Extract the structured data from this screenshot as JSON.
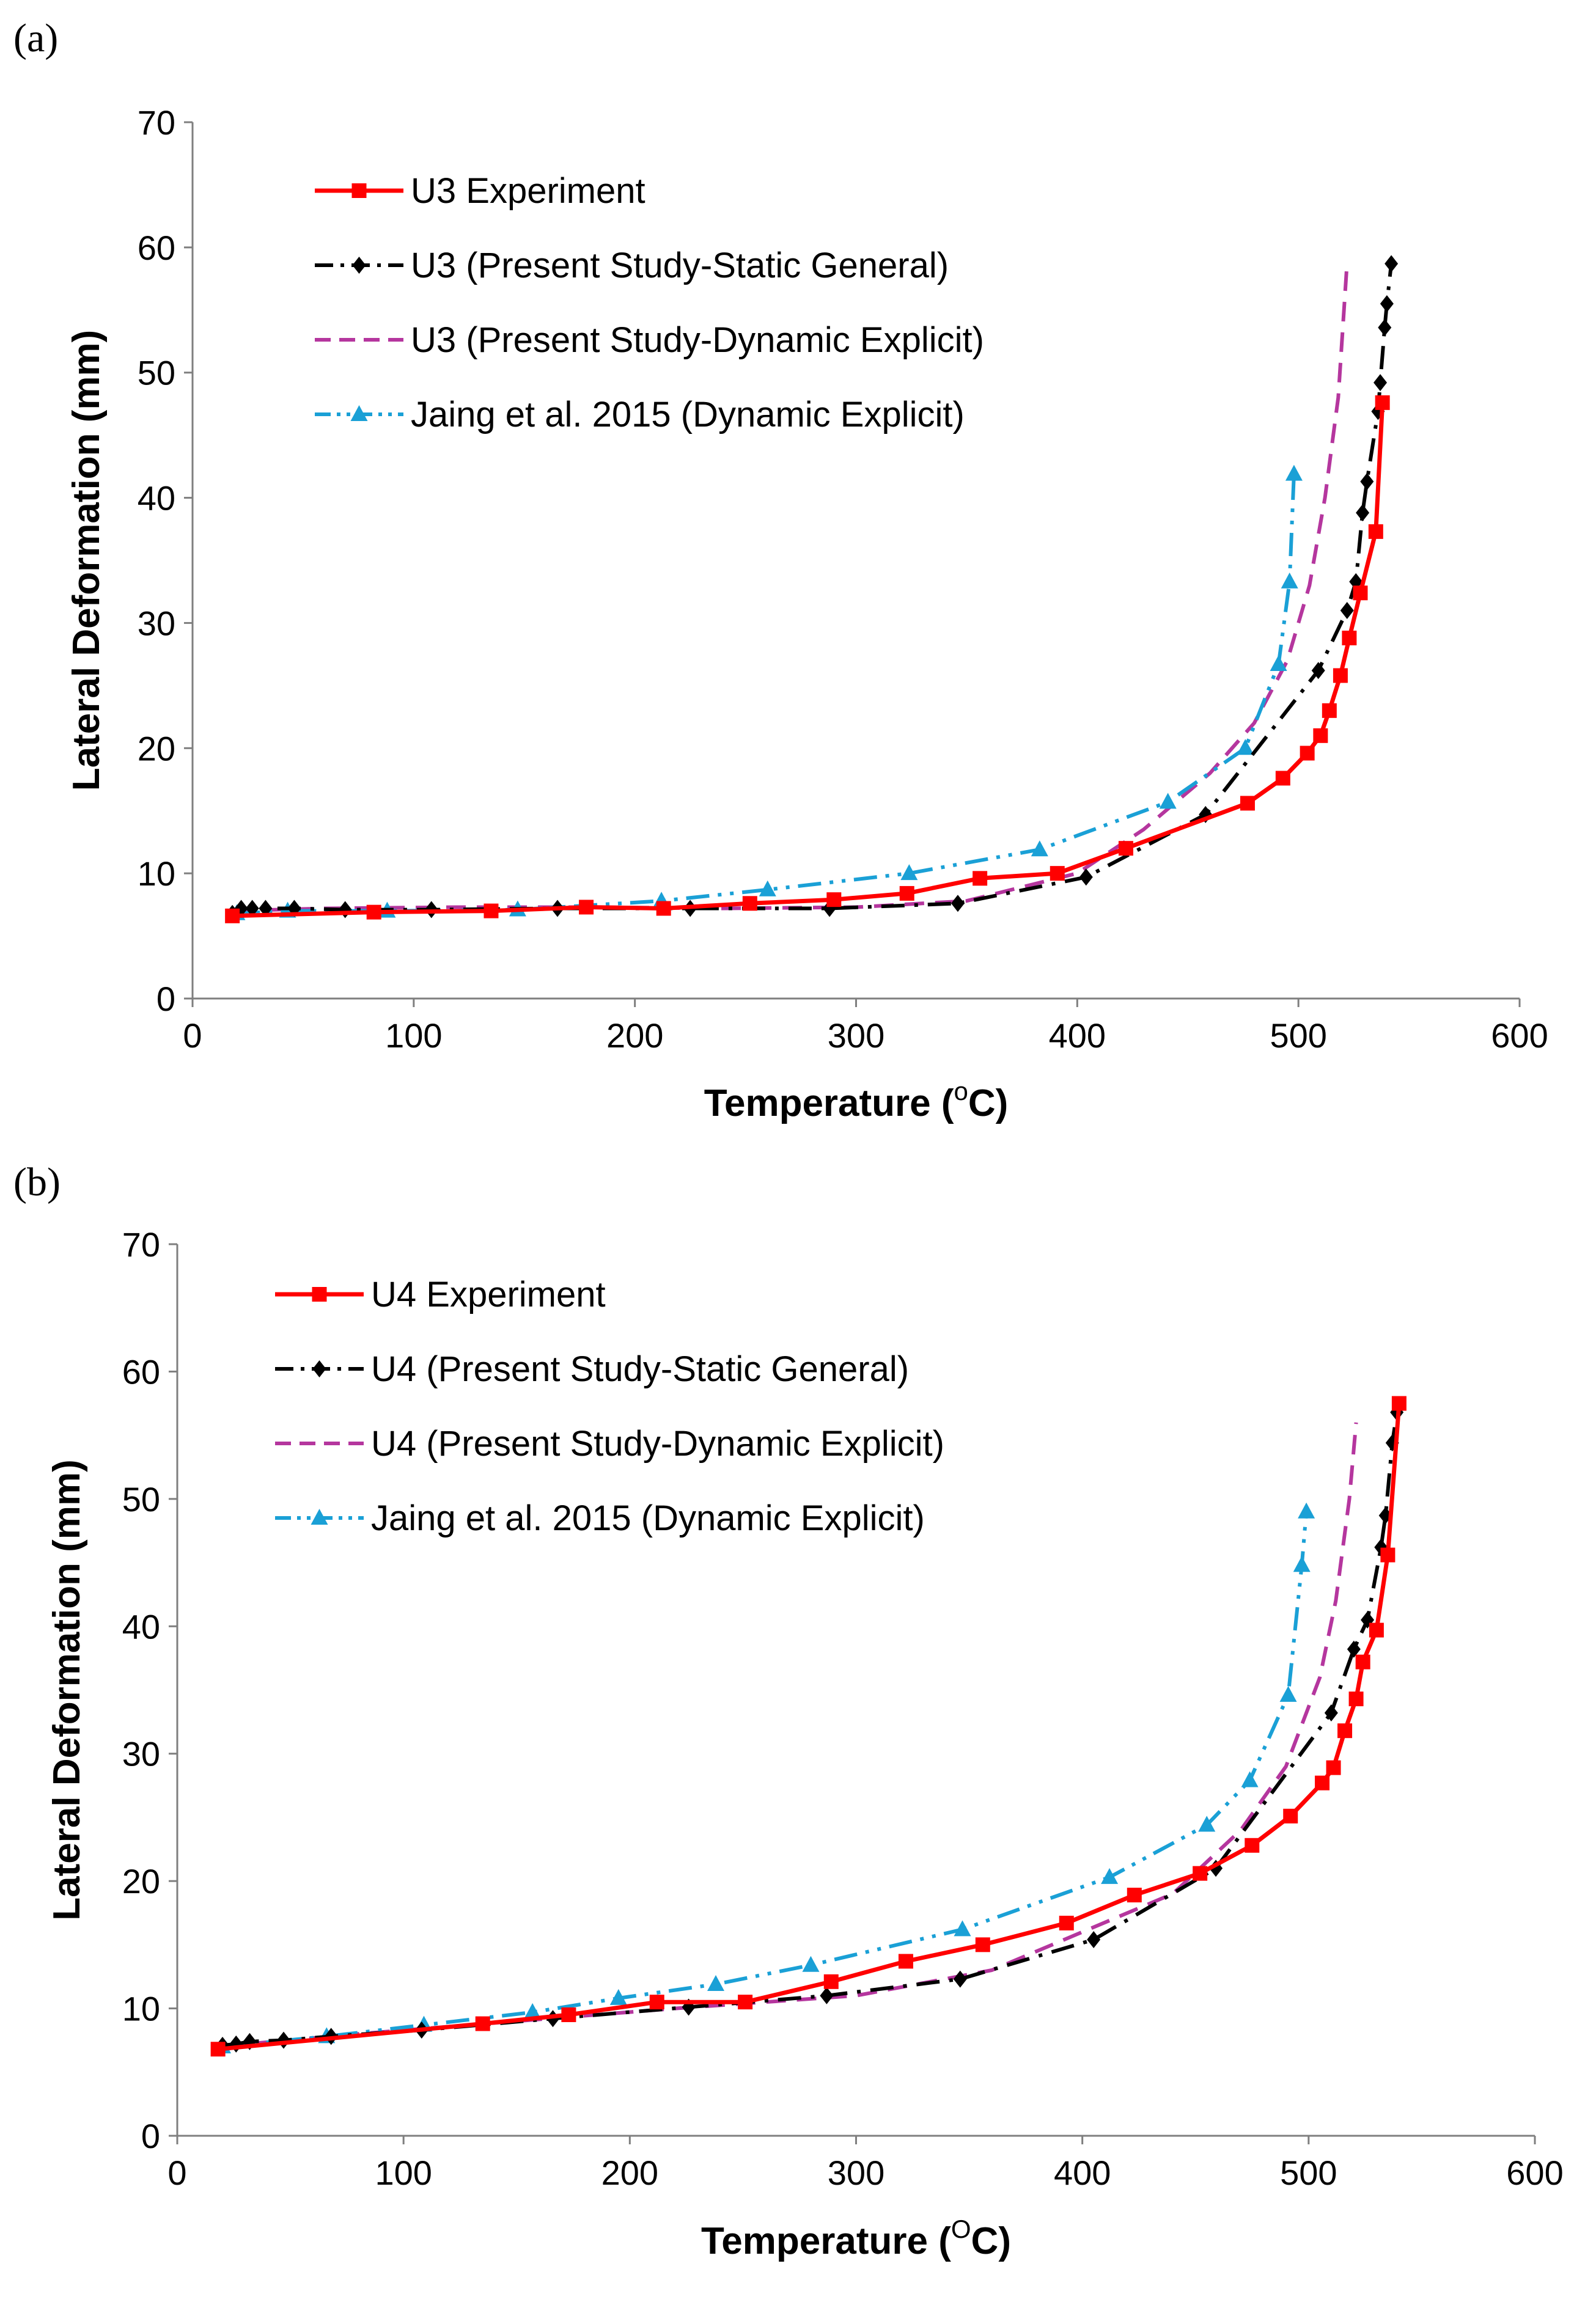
{
  "chart_data": [
    {
      "type": "line",
      "panel_label": "(a)",
      "title": "",
      "xlabel_prefix": "Temperature (",
      "xlabel_sup": "o",
      "xlabel_suffix": "C)",
      "ylabel": "Lateral Deformation (mm)",
      "xlim": [
        0,
        600
      ],
      "ylim": [
        0,
        70
      ],
      "xticks": [
        0,
        100,
        200,
        300,
        400,
        500,
        600
      ],
      "yticks": [
        0,
        10,
        20,
        30,
        40,
        50,
        60,
        70
      ],
      "legend_position": "top-left",
      "series": [
        {
          "name": "U3 Experiment",
          "color": "#ff0000",
          "marker": "square",
          "dash": "solid",
          "x": [
            18,
            82,
            135,
            178,
            213,
            252,
            290,
            323,
            356,
            391,
            422,
            477,
            493,
            504,
            510,
            514,
            519,
            523,
            528,
            535,
            538
          ],
          "y": [
            6.6,
            6.9,
            7.0,
            7.3,
            7.2,
            7.6,
            7.9,
            8.4,
            9.6,
            10.0,
            12.0,
            15.6,
            17.6,
            19.6,
            21.0,
            23.0,
            25.8,
            28.8,
            32.4,
            37.3,
            47.6
          ]
        },
        {
          "name": "U3 (Present Study-Static General)",
          "color": "#000000",
          "marker": "diamond",
          "dash": "dashdot",
          "x": [
            18,
            22,
            27,
            33,
            46,
            69,
            108,
            165,
            225,
            288,
            346,
            404,
            458,
            509,
            522,
            526,
            529,
            531,
            536,
            537,
            539,
            540,
            542
          ],
          "y": [
            6.8,
            7.2,
            7.2,
            7.2,
            7.2,
            7.1,
            7.1,
            7.2,
            7.2,
            7.2,
            7.6,
            9.7,
            14.7,
            26.2,
            31.0,
            33.3,
            38.8,
            41.3,
            46.9,
            49.2,
            53.6,
            55.5,
            58.7
          ]
        },
        {
          "name": "U3 (Present Study-Dynamic Explicit)",
          "color": "#b5369e",
          "marker": "none",
          "dash": "dashed",
          "x": [
            18,
            60,
            120,
            180,
            240,
            300,
            350,
            400,
            430,
            460,
            480,
            495,
            505,
            512,
            518,
            522
          ],
          "y": [
            7.0,
            7.2,
            7.3,
            7.3,
            7.2,
            7.3,
            7.8,
            10.0,
            13.5,
            18.0,
            22.0,
            27.0,
            33.0,
            40.0,
            48.0,
            58.8
          ]
        },
        {
          "name": "Jaing et al. 2015 (Dynamic Explicit)",
          "color": "#1aa0d6",
          "marker": "triangle",
          "dash": "dashdotdot",
          "x": [
            20,
            43,
            88,
            147,
            212,
            260,
            324,
            383,
            441,
            476,
            491,
            496,
            498
          ],
          "y": [
            6.8,
            7.0,
            7.0,
            7.1,
            7.8,
            8.7,
            10.0,
            11.9,
            15.7,
            20.0,
            26.7,
            33.3,
            41.9
          ]
        }
      ]
    },
    {
      "type": "line",
      "panel_label": "(b)",
      "title": "",
      "xlabel_prefix": "Temperature (",
      "xlabel_sup": "O",
      "xlabel_suffix": "C)",
      "ylabel": "Lateral Deformation (mm)",
      "xlim": [
        0,
        600
      ],
      "ylim": [
        0,
        70
      ],
      "xticks": [
        0,
        100,
        200,
        300,
        400,
        500,
        600
      ],
      "yticks": [
        0,
        10,
        20,
        30,
        40,
        50,
        60,
        70
      ],
      "legend_position": "top-left",
      "series": [
        {
          "name": "U4 Experiment",
          "color": "#ff0000",
          "marker": "square",
          "dash": "solid",
          "x": [
            18,
            135,
            173,
            212,
            251,
            289,
            322,
            356,
            393,
            423,
            452,
            475,
            492,
            506,
            511,
            516,
            521,
            524,
            530,
            535,
            540
          ],
          "y": [
            6.8,
            8.8,
            9.5,
            10.5,
            10.5,
            12.1,
            13.7,
            15.0,
            16.7,
            18.9,
            20.6,
            22.8,
            25.1,
            27.7,
            28.9,
            31.8,
            34.3,
            37.2,
            39.7,
            45.6,
            57.5
          ]
        },
        {
          "name": "U4 (Present Study-Static General)",
          "color": "#000000",
          "marker": "diamond",
          "dash": "dashdot",
          "x": [
            20,
            26,
            32,
            47,
            68,
            108,
            166,
            226,
            287,
            346,
            405,
            459,
            510,
            520,
            526,
            532,
            534,
            537,
            539
          ],
          "y": [
            7.1,
            7.2,
            7.4,
            7.5,
            7.8,
            8.3,
            9.2,
            10.1,
            11.0,
            12.3,
            15.4,
            21.0,
            33.2,
            38.2,
            40.5,
            46.2,
            48.7,
            54.4,
            56.8
          ]
        },
        {
          "name": "U4 (Present Study-Dynamic Explicit)",
          "color": "#b5369e",
          "marker": "none",
          "dash": "dashed",
          "x": [
            18,
            80,
            150,
            220,
            300,
            360,
            400,
            440,
            470,
            490,
            505,
            512,
            518,
            521
          ],
          "y": [
            7.0,
            8.0,
            9.0,
            10.0,
            11.0,
            13.0,
            16.0,
            19.0,
            24.0,
            29.0,
            36.0,
            42.0,
            50.0,
            56.0
          ]
        },
        {
          "name": "Jaing et al. 2015 (Dynamic Explicit)",
          "color": "#1aa0d6",
          "marker": "triangle",
          "dash": "dashdotdot",
          "x": [
            20,
            66,
            109,
            157,
            195,
            238,
            280,
            347,
            412,
            455,
            474,
            491,
            497,
            499
          ],
          "y": [
            7.0,
            7.8,
            8.7,
            9.7,
            10.8,
            11.9,
            13.4,
            16.2,
            20.3,
            24.4,
            27.9,
            34.6,
            44.8,
            49.0
          ]
        }
      ]
    }
  ]
}
